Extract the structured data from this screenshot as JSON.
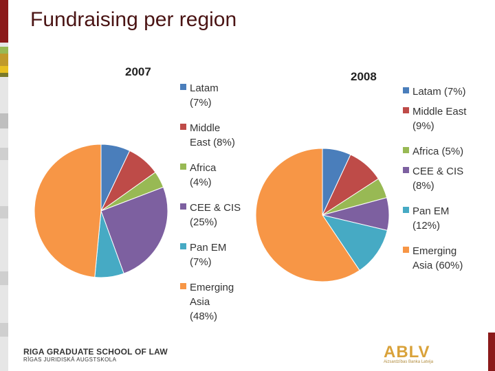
{
  "page": {
    "title": "Fundraising per region",
    "footer_line1": "RIGA GRADUATE SCHOOL OF LAW",
    "footer_line2": "RĪGAS JURIDISKĀ AUGSTSKOLA",
    "logo_text": "ABLV",
    "logo_sub": "Aizsardzības Banka Latvija"
  },
  "chart_data": [
    {
      "type": "pie",
      "title": "2007",
      "slices": [
        {
          "name": "Latam",
          "value": 7,
          "color": "#4a7ebb",
          "legend_lines": [
            "Latam",
            "(7%)"
          ]
        },
        {
          "name": "Middle East",
          "value": 8,
          "color": "#be4b48",
          "legend_lines": [
            "Middle",
            "East (8%)"
          ]
        },
        {
          "name": "Africa",
          "value": 4,
          "color": "#98b954",
          "legend_lines": [
            "Africa",
            "(4%)"
          ]
        },
        {
          "name": "CEE & CIS",
          "value": 25,
          "color": "#7d60a0",
          "legend_lines": [
            "CEE & CIS",
            "(25%)"
          ]
        },
        {
          "name": "Pan EM",
          "value": 7,
          "color": "#46aac4",
          "legend_lines": [
            "Pan EM",
            "(7%)"
          ]
        },
        {
          "name": "Emerging Asia",
          "value": 48,
          "color": "#f79646",
          "legend_lines": [
            "Emerging",
            "Asia",
            "(48%)"
          ]
        }
      ],
      "legend": "right"
    },
    {
      "type": "pie",
      "title": "2008",
      "slices": [
        {
          "name": "Latam",
          "value": 7,
          "color": "#4a7ebb",
          "legend_lines": [
            "Latam (7%)"
          ]
        },
        {
          "name": "Middle East",
          "value": 9,
          "color": "#be4b48",
          "legend_lines": [
            "Middle East",
            "(9%)"
          ]
        },
        {
          "name": "Africa",
          "value": 5,
          "color": "#98b954",
          "legend_lines": [
            "Africa (5%)"
          ]
        },
        {
          "name": "CEE & CIS",
          "value": 8,
          "color": "#7d60a0",
          "legend_lines": [
            "CEE & CIS",
            "(8%)"
          ]
        },
        {
          "name": "Pan EM",
          "value": 12,
          "color": "#46aac4",
          "legend_lines": [
            "Pan EM",
            "(12%)"
          ]
        },
        {
          "name": "Emerging Asia",
          "value": 60,
          "color": "#f79646",
          "legend_lines": [
            "Emerging",
            "Asia (60%)"
          ]
        }
      ],
      "legend": "right"
    }
  ]
}
